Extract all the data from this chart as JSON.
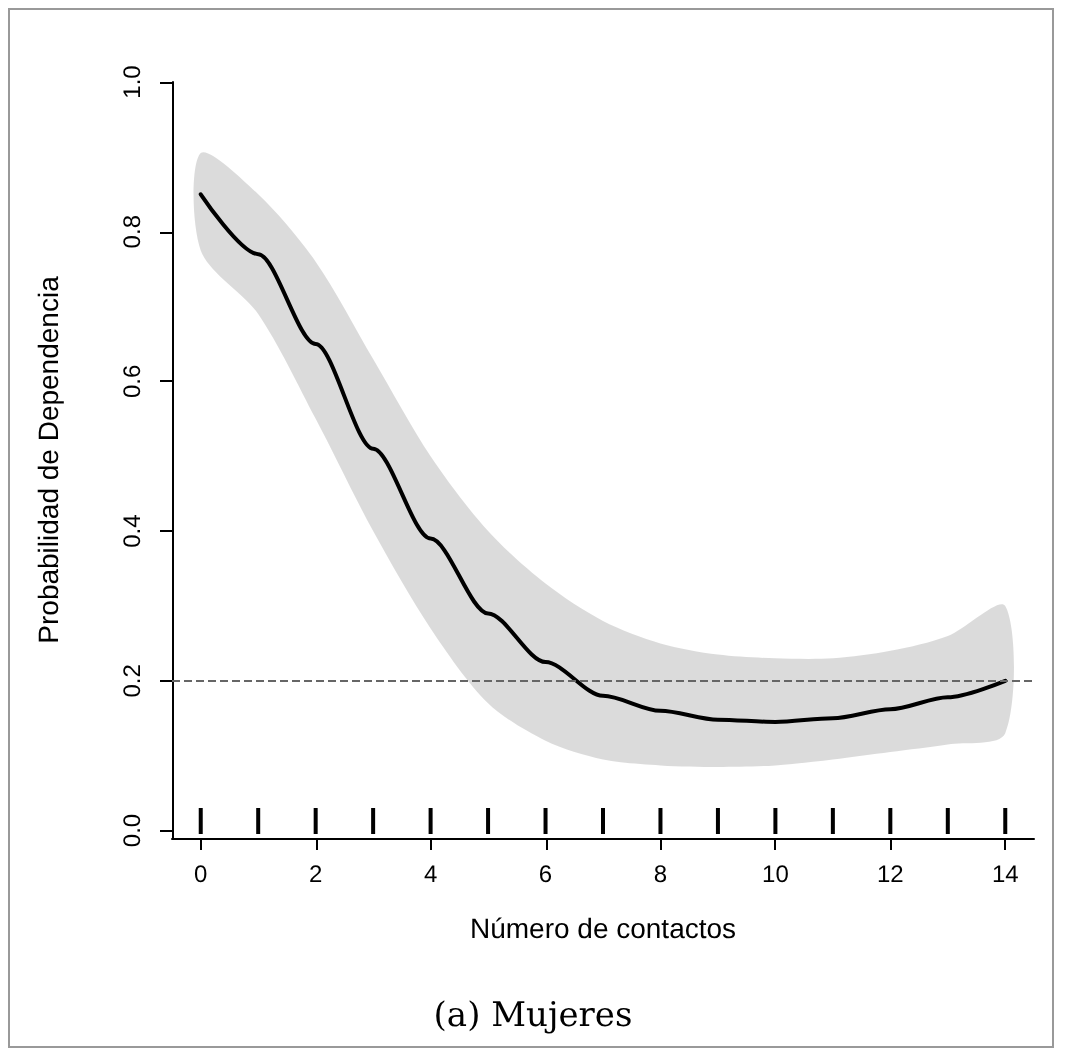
{
  "chart_data": {
    "type": "line",
    "xlabel": "Número de contactos",
    "ylabel": "Probabilidad de Dependencia",
    "annotations": [
      "(a)  Mujeres"
    ],
    "x": [
      0,
      1,
      2,
      3,
      4,
      5,
      6,
      7,
      8,
      9,
      10,
      11,
      12,
      13,
      14
    ],
    "series": [
      {
        "color": "#000000",
        "values": [
          0.85,
          0.77,
          0.65,
          0.51,
          0.39,
          0.29,
          0.225,
          0.18,
          0.16,
          0.148,
          0.145,
          0.15,
          0.162,
          0.178,
          0.2
        ],
        "lower": [
          0.775,
          0.69,
          0.55,
          0.4,
          0.27,
          0.17,
          0.12,
          0.095,
          0.087,
          0.085,
          0.087,
          0.095,
          0.105,
          0.115,
          0.13
        ],
        "upper": [
          0.905,
          0.85,
          0.76,
          0.63,
          0.5,
          0.4,
          0.33,
          0.28,
          0.25,
          0.235,
          0.23,
          0.23,
          0.24,
          0.26,
          0.3
        ]
      }
    ],
    "ref_lines": [
      {
        "axis": "y",
        "value": 0.2,
        "color": "#666666",
        "line_style": "dashed"
      }
    ],
    "xlim": [
      -0.5,
      14.5
    ],
    "xticks": [
      0,
      2,
      4,
      6,
      8,
      10,
      12,
      14
    ],
    "ylim": [
      -0.01,
      1.0
    ],
    "yticks": [
      {
        "value": 0,
        "label": "0.0"
      },
      {
        "value": 0.2,
        "label": "0.2"
      },
      {
        "value": 0.4,
        "label": "0.4"
      },
      {
        "value": 0.6,
        "label": "0.6"
      },
      {
        "value": 0.8,
        "label": "0.8"
      },
      {
        "value": 1.0,
        "label": "1.0"
      }
    ],
    "grid": false,
    "line_style": "solid"
  }
}
